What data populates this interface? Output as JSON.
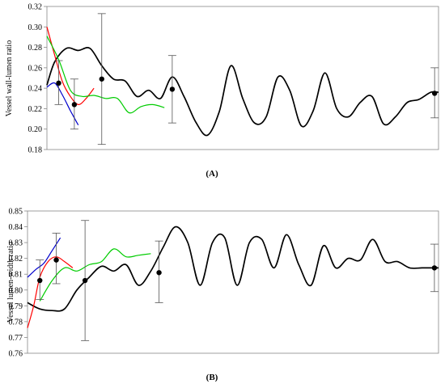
{
  "chart_data": [
    {
      "type": "line",
      "panel_label": "(A)",
      "ylabel": "Vessel wall-lumen ratio",
      "xlabel": "",
      "ylim": [
        0.18,
        0.32
      ],
      "yticks": [
        0.18,
        0.2,
        0.22,
        0.24,
        0.26,
        0.28,
        0.3,
        0.32
      ],
      "ytick_labels": [
        "0.18",
        "0.20",
        "0.22",
        "0.24",
        "0.26",
        "0.28",
        "0.30",
        "0.32"
      ],
      "xlim": [
        0,
        100
      ],
      "grid": false,
      "legend": "none",
      "series": [
        {
          "color": "#000000",
          "x": [
            0,
            2,
            5,
            8,
            11,
            14,
            17,
            20,
            23,
            26,
            29,
            32,
            35,
            38,
            41,
            44,
            47,
            50,
            53,
            56,
            59,
            62,
            65,
            68,
            71,
            74,
            77,
            80,
            83,
            86,
            89,
            92,
            95,
            98,
            100
          ],
          "values": [
            0.243,
            0.266,
            0.279,
            0.277,
            0.279,
            0.262,
            0.249,
            0.247,
            0.232,
            0.238,
            0.23,
            0.251,
            0.232,
            0.207,
            0.194,
            0.217,
            0.262,
            0.23,
            0.206,
            0.212,
            0.251,
            0.238,
            0.203,
            0.218,
            0.255,
            0.22,
            0.212,
            0.226,
            0.232,
            0.205,
            0.212,
            0.226,
            0.229,
            0.236,
            0.236
          ]
        },
        {
          "color": "#ff0000",
          "x": [
            0,
            2,
            4,
            6,
            8,
            10,
            12
          ],
          "values": [
            0.3,
            0.272,
            0.246,
            0.232,
            0.224,
            0.23,
            0.24
          ]
        },
        {
          "color": "#00cc00",
          "x": [
            0,
            3,
            6,
            9,
            12,
            15,
            18,
            21,
            24,
            27,
            30
          ],
          "values": [
            0.291,
            0.268,
            0.238,
            0.232,
            0.233,
            0.23,
            0.23,
            0.216,
            0.222,
            0.224,
            0.221
          ]
        },
        {
          "color": "#0000cc",
          "x": [
            0,
            2,
            4,
            6,
            8
          ],
          "values": [
            0.241,
            0.245,
            0.233,
            0.218,
            0.204
          ]
        }
      ],
      "points": [
        {
          "x": 3,
          "y": 0.245,
          "err_low": 0.224,
          "err_high": 0.267
        },
        {
          "x": 7,
          "y": 0.224,
          "err_low": 0.2,
          "err_high": 0.249
        },
        {
          "x": 14,
          "y": 0.249,
          "err_low": 0.185,
          "err_high": 0.313
        },
        {
          "x": 32,
          "y": 0.239,
          "err_low": 0.206,
          "err_high": 0.272
        },
        {
          "x": 99,
          "y": 0.235,
          "err_low": 0.211,
          "err_high": 0.26
        }
      ]
    },
    {
      "type": "line",
      "panel_label": "(B)",
      "ylabel": "Vessel lumen-width ratio",
      "xlabel": "",
      "ylim": [
        0.76,
        0.85
      ],
      "yticks": [
        0.76,
        0.77,
        0.78,
        0.79,
        0.8,
        0.81,
        0.82,
        0.83,
        0.84,
        0.85
      ],
      "ytick_labels": [
        "0.76",
        "0.77",
        "0.78",
        "0.79",
        "0.80",
        "0.81",
        "0.82",
        "0.83",
        "0.84",
        "0.85"
      ],
      "xlim": [
        0,
        100
      ],
      "grid": false,
      "legend": "none",
      "series": [
        {
          "color": "#000000",
          "x": [
            0,
            3,
            6,
            9,
            12,
            15,
            18,
            21,
            24,
            27,
            30,
            33,
            36,
            39,
            42,
            45,
            48,
            51,
            54,
            57,
            60,
            63,
            66,
            69,
            72,
            75,
            78,
            81,
            84,
            87,
            90,
            93,
            96,
            99,
            100
          ],
          "values": [
            0.792,
            0.788,
            0.787,
            0.788,
            0.8,
            0.808,
            0.815,
            0.812,
            0.816,
            0.803,
            0.812,
            0.827,
            0.84,
            0.83,
            0.803,
            0.83,
            0.833,
            0.803,
            0.83,
            0.832,
            0.814,
            0.835,
            0.816,
            0.803,
            0.828,
            0.814,
            0.82,
            0.819,
            0.832,
            0.818,
            0.818,
            0.814,
            0.814,
            0.814,
            0.814
          ]
        },
        {
          "color": "#ff0000",
          "x": [
            0,
            1.5,
            3,
            5,
            7,
            9,
            11
          ],
          "values": [
            0.776,
            0.79,
            0.808,
            0.818,
            0.821,
            0.818,
            0.814
          ]
        },
        {
          "color": "#00cc00",
          "x": [
            3,
            6,
            9,
            12,
            15,
            18,
            21,
            24,
            27,
            30
          ],
          "values": [
            0.793,
            0.806,
            0.814,
            0.812,
            0.816,
            0.818,
            0.826,
            0.821,
            0.822,
            0.823
          ]
        },
        {
          "color": "#0000cc",
          "x": [
            0,
            2,
            4,
            6,
            8
          ],
          "values": [
            0.808,
            0.813,
            0.817,
            0.825,
            0.833
          ]
        }
      ],
      "points": [
        {
          "x": 3,
          "y": 0.806,
          "err_low": 0.794,
          "err_high": 0.819
        },
        {
          "x": 7,
          "y": 0.819,
          "err_low": 0.804,
          "err_high": 0.836
        },
        {
          "x": 14,
          "y": 0.806,
          "err_low": 0.768,
          "err_high": 0.844
        },
        {
          "x": 32,
          "y": 0.811,
          "err_low": 0.792,
          "err_high": 0.831
        },
        {
          "x": 99,
          "y": 0.814,
          "err_low": 0.799,
          "err_high": 0.829
        }
      ]
    }
  ]
}
